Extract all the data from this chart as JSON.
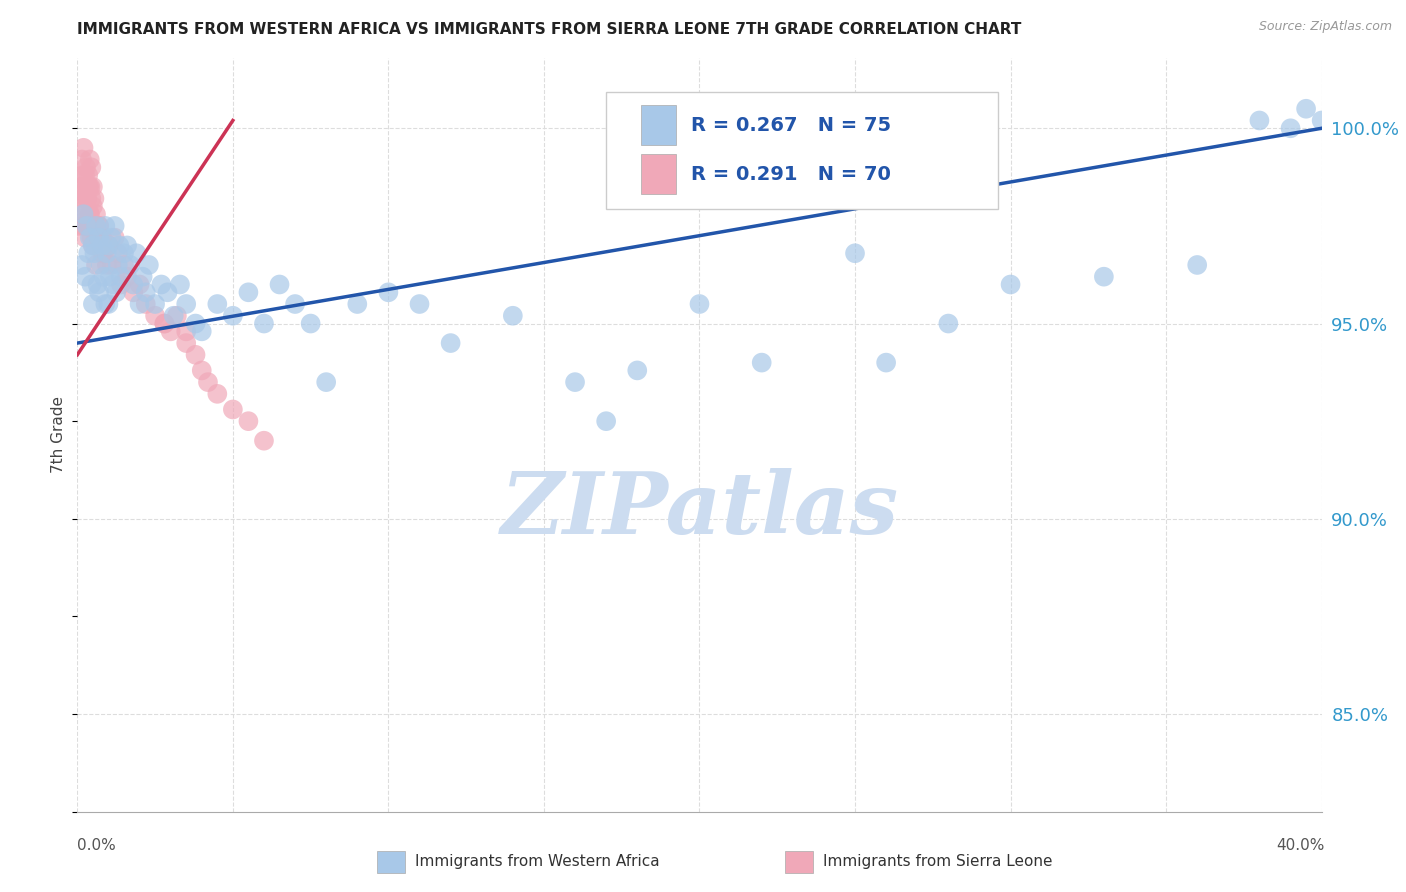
{
  "title": "IMMIGRANTS FROM WESTERN AFRICA VS IMMIGRANTS FROM SIERRA LEONE 7TH GRADE CORRELATION CHART",
  "source": "Source: ZipAtlas.com",
  "ylabel": "7th Grade",
  "yaxis_ticks": [
    85.0,
    90.0,
    95.0,
    100.0
  ],
  "xmin": 0.0,
  "xmax": 40.0,
  "ymin": 82.5,
  "ymax": 101.8,
  "blue_R": 0.267,
  "blue_N": 75,
  "pink_R": 0.291,
  "pink_N": 70,
  "blue_color": "#a8c8e8",
  "pink_color": "#f0a8b8",
  "blue_line_color": "#2255aa",
  "pink_line_color": "#cc3355",
  "watermark": "ZIPatlas",
  "watermark_color": "#ccdcf0",
  "legend_label_blue": "Immigrants from Western Africa",
  "legend_label_pink": "Immigrants from Sierra Leone",
  "blue_line_x0": 0.0,
  "blue_line_y0": 94.5,
  "blue_line_x1": 40.0,
  "blue_line_y1": 100.0,
  "pink_line_x0": 0.0,
  "pink_line_y0": 94.2,
  "pink_line_x1": 5.0,
  "pink_line_y1": 100.2,
  "blue_scatter_x": [
    0.15,
    0.2,
    0.25,
    0.3,
    0.35,
    0.4,
    0.45,
    0.5,
    0.5,
    0.55,
    0.6,
    0.65,
    0.7,
    0.7,
    0.75,
    0.8,
    0.85,
    0.9,
    0.9,
    0.95,
    1.0,
    1.0,
    1.05,
    1.1,
    1.15,
    1.2,
    1.25,
    1.3,
    1.35,
    1.4,
    1.5,
    1.6,
    1.7,
    1.8,
    1.9,
    2.0,
    2.1,
    2.2,
    2.3,
    2.5,
    2.7,
    2.9,
    3.1,
    3.3,
    3.5,
    3.8,
    4.0,
    4.5,
    5.0,
    5.5,
    6.0,
    6.5,
    7.0,
    7.5,
    8.0,
    9.0,
    10.0,
    11.0,
    12.0,
    14.0,
    16.0,
    17.0,
    20.0,
    22.0,
    25.0,
    28.0,
    30.0,
    33.0,
    36.0,
    38.0,
    39.0,
    39.5,
    40.0,
    26.0,
    18.0
  ],
  "blue_scatter_y": [
    96.5,
    97.8,
    96.2,
    97.5,
    96.8,
    97.2,
    96.0,
    97.0,
    95.5,
    96.8,
    97.5,
    96.0,
    97.2,
    95.8,
    96.5,
    97.0,
    96.2,
    97.5,
    95.5,
    96.8,
    97.0,
    95.5,
    96.2,
    97.2,
    96.0,
    97.5,
    95.8,
    96.5,
    97.0,
    96.2,
    96.8,
    97.0,
    96.5,
    96.0,
    96.8,
    95.5,
    96.2,
    95.8,
    96.5,
    95.5,
    96.0,
    95.8,
    95.2,
    96.0,
    95.5,
    95.0,
    94.8,
    95.5,
    95.2,
    95.8,
    95.0,
    96.0,
    95.5,
    95.0,
    93.5,
    95.5,
    95.8,
    95.5,
    94.5,
    95.2,
    93.5,
    92.5,
    95.5,
    94.0,
    96.8,
    95.0,
    96.0,
    96.2,
    96.5,
    100.2,
    100.0,
    100.5,
    100.2,
    94.0,
    93.8
  ],
  "pink_scatter_x": [
    0.05,
    0.08,
    0.1,
    0.12,
    0.15,
    0.15,
    0.18,
    0.2,
    0.2,
    0.22,
    0.25,
    0.25,
    0.28,
    0.3,
    0.3,
    0.32,
    0.35,
    0.35,
    0.38,
    0.4,
    0.4,
    0.42,
    0.45,
    0.45,
    0.5,
    0.5,
    0.55,
    0.55,
    0.6,
    0.65,
    0.7,
    0.75,
    0.8,
    0.85,
    0.9,
    0.95,
    1.0,
    1.1,
    1.2,
    1.4,
    1.6,
    1.8,
    2.0,
    2.2,
    2.5,
    2.8,
    3.0,
    3.2,
    3.5,
    3.8,
    4.0,
    4.5,
    5.0,
    5.5,
    6.0,
    1.3,
    2.8,
    0.6,
    0.7,
    0.8,
    1.5,
    1.0,
    3.5,
    4.2,
    0.3,
    0.5,
    0.4,
    0.6,
    0.35,
    0.45
  ],
  "pink_scatter_y": [
    97.5,
    98.0,
    98.5,
    97.8,
    99.2,
    98.5,
    98.8,
    99.5,
    97.5,
    98.2,
    98.8,
    97.2,
    99.0,
    98.5,
    97.5,
    98.2,
    98.8,
    97.5,
    98.5,
    99.2,
    97.8,
    98.5,
    99.0,
    97.2,
    98.5,
    97.0,
    98.2,
    97.5,
    97.8,
    97.2,
    97.5,
    97.0,
    97.2,
    96.8,
    97.0,
    96.5,
    97.0,
    96.5,
    97.2,
    96.0,
    96.2,
    95.8,
    96.0,
    95.5,
    95.2,
    95.0,
    94.8,
    95.2,
    94.5,
    94.2,
    93.8,
    93.2,
    92.8,
    92.5,
    92.0,
    96.8,
    95.0,
    97.2,
    97.5,
    96.8,
    96.5,
    97.0,
    94.8,
    93.5,
    98.2,
    98.0,
    97.8,
    96.5,
    98.5,
    98.2
  ]
}
